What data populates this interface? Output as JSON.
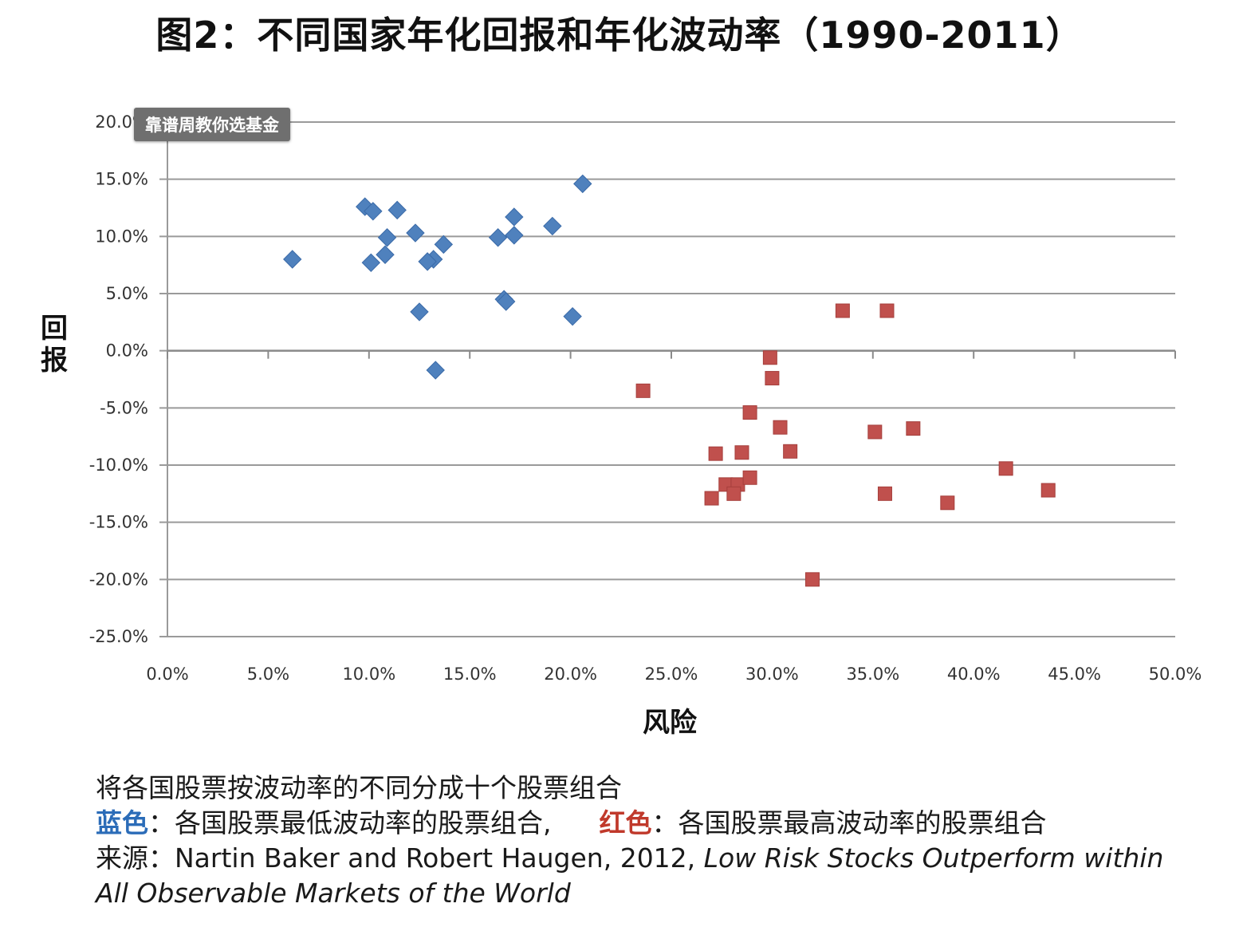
{
  "title": "图2：不同国家年化回报和年化波动率（1990-2011）",
  "watermark": "靠谱周教你选基金",
  "chart_data": {
    "type": "scatter",
    "xlabel": "风险",
    "ylabel": "回报",
    "xlim": [
      0,
      50
    ],
    "ylim": [
      -25,
      20
    ],
    "xticks": [
      "0.0%",
      "5.0%",
      "10.0%",
      "15.0%",
      "20.0%",
      "25.0%",
      "30.0%",
      "35.0%",
      "40.0%",
      "45.0%",
      "50.0%"
    ],
    "yticks": [
      "20.0%",
      "15.0%",
      "10.0%",
      "5.0%",
      "0.0%",
      "-5.0%",
      "-10.0%",
      "-15.0%",
      "-20.0%",
      "-25.0%"
    ],
    "grid": "horizontal",
    "series": [
      {
        "color": "#4f81bd",
        "marker": "diamond",
        "points": [
          [
            6.2,
            8.0
          ],
          [
            9.8,
            12.6
          ],
          [
            10.2,
            12.2
          ],
          [
            11.4,
            12.3
          ],
          [
            10.9,
            9.9
          ],
          [
            12.3,
            10.3
          ],
          [
            10.8,
            8.4
          ],
          [
            10.1,
            7.7
          ],
          [
            13.7,
            9.3
          ],
          [
            13.2,
            8.0
          ],
          [
            12.9,
            7.8
          ],
          [
            16.4,
            9.9
          ],
          [
            17.2,
            11.7
          ],
          [
            17.2,
            10.1
          ],
          [
            19.1,
            10.9
          ],
          [
            20.6,
            14.6
          ],
          [
            12.5,
            3.4
          ],
          [
            16.7,
            4.5
          ],
          [
            16.8,
            4.3
          ],
          [
            20.1,
            3.0
          ],
          [
            13.3,
            -1.7
          ]
        ]
      },
      {
        "color": "#c0504d",
        "marker": "square",
        "points": [
          [
            33.5,
            3.5
          ],
          [
            35.7,
            3.5
          ],
          [
            29.9,
            -0.6
          ],
          [
            30.0,
            -2.4
          ],
          [
            23.6,
            -3.5
          ],
          [
            28.9,
            -5.4
          ],
          [
            30.4,
            -6.7
          ],
          [
            35.1,
            -7.1
          ],
          [
            37.0,
            -6.8
          ],
          [
            27.2,
            -9.0
          ],
          [
            28.5,
            -8.9
          ],
          [
            30.9,
            -8.8
          ],
          [
            41.6,
            -10.3
          ],
          [
            27.7,
            -11.7
          ],
          [
            28.3,
            -11.7
          ],
          [
            28.9,
            -11.1
          ],
          [
            28.1,
            -12.5
          ],
          [
            27.0,
            -12.9
          ],
          [
            35.6,
            -12.5
          ],
          [
            38.7,
            -13.3
          ],
          [
            43.7,
            -12.2
          ],
          [
            32.0,
            -20.0
          ]
        ]
      }
    ]
  },
  "caption": {
    "line1": "将各国股票按波动率的不同分成十个股票组合",
    "blue_label": "蓝色",
    "blue_text": "：各国股票最低波动率的股票组合,",
    "red_label": "红色",
    "red_text": "：各国股票最高波动率的股票组合",
    "source_prefix": "来源：Nartin Baker and Robert Haugen,  2012,",
    "source_title_1": "Low Risk Stocks Outperform within",
    "source_title_2": "All Observable Markets of the World"
  }
}
